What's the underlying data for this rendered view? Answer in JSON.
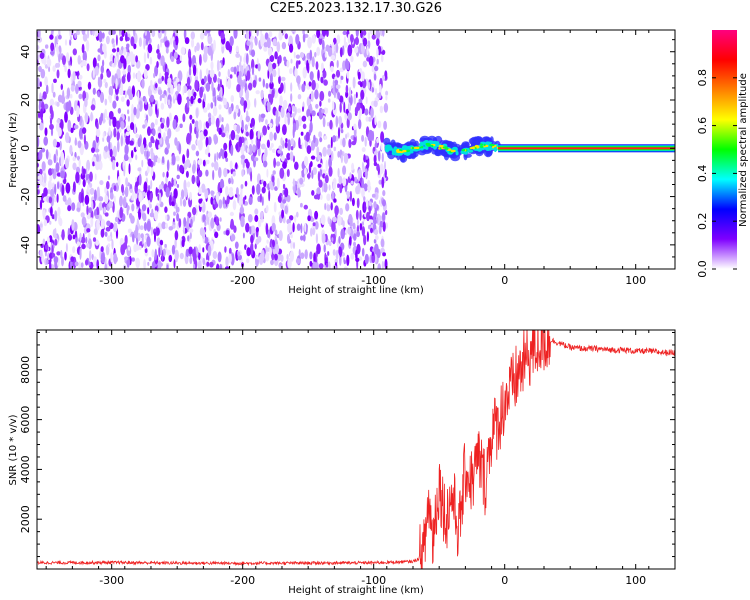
{
  "title": "C2E5.2023.132.17.30.G26",
  "chart_data": [
    {
      "type": "heatmap",
      "xlabel": "Height of straight line (km)",
      "ylabel": "Frequency (Hz)",
      "xlim": [
        -357,
        130
      ],
      "ylim": [
        -50,
        49
      ],
      "x_ticks": [
        -300,
        -200,
        -100,
        0,
        100
      ],
      "y_ticks": [
        -40,
        -20,
        0,
        20,
        40
      ],
      "noise_region_x": [
        -357,
        -90
      ],
      "tone_region_x": [
        -90,
        130
      ],
      "tone_frequency": 0,
      "grid": false,
      "colorbar": {
        "label": "Normalized spectral amplitude",
        "range": [
          0,
          1
        ],
        "ticks": [
          "0.0",
          "0.2",
          "0.4",
          "0.6",
          "0.8"
        ],
        "colors": [
          "#ffffff",
          "#7f00ff",
          "#0000ff",
          "#00ffff",
          "#00ff00",
          "#ffff00",
          "#ff7f00",
          "#ff0000",
          "#ff007f"
        ]
      }
    },
    {
      "type": "line",
      "xlabel": "Height of straight line (km)",
      "ylabel": "SNR (10 * v/v)",
      "xlim": [
        -357,
        130
      ],
      "ylim": [
        0,
        9600
      ],
      "x_ticks": [
        -300,
        -200,
        -100,
        0,
        100
      ],
      "y_ticks": [
        2000,
        4000,
        6000,
        8000
      ],
      "color": "#ee2222",
      "grid": false,
      "series": [
        {
          "x": [
            -357,
            -300,
            -250,
            -200,
            -150,
            -100,
            -70,
            -62,
            -58,
            -55,
            -50,
            -45,
            -40,
            -35,
            -30,
            -25,
            -20,
            -15,
            -10,
            -5,
            0,
            5,
            10,
            15,
            20,
            25,
            30,
            35,
            40,
            50,
            60,
            70,
            80,
            90,
            100,
            110,
            120,
            130
          ],
          "y": [
            250,
            260,
            240,
            230,
            240,
            250,
            300,
            500,
            2800,
            1200,
            3500,
            2000,
            3000,
            1500,
            4000,
            3500,
            4500,
            3500,
            5500,
            5800,
            6800,
            7200,
            7800,
            8300,
            8700,
            9000,
            9200,
            9200,
            9100,
            8900,
            8850,
            8850,
            8800,
            8800,
            8750,
            8750,
            8700,
            8700
          ]
        }
      ]
    }
  ]
}
